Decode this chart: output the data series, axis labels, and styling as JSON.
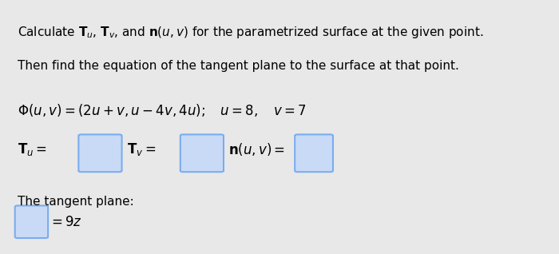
{
  "bg_color": "#e8e8e8",
  "title_line1": "Calculate $\\mathbf{T}_u$, $\\mathbf{T}_v$, and $\\mathbf{n}(u, v)$ for the parametrized surface at the given point.",
  "title_line2": "Then find the equation of the tangent plane to the surface at that point.",
  "phi_eq": "$\\Phi(u, v) = (2u + v, u - 4v, 4u);$",
  "uv_eq": "$u = 8, \\quad v = 7$",
  "tu_label": "$\\mathbf{T}_u = $",
  "tv_label": "$\\mathbf{T}_v = $",
  "nuv_label": "$\\mathbf{n}(u, v) = $",
  "tangent_label": "The tangent plane:",
  "eq9z": "$= 9z$",
  "box_color": "#c8daf5",
  "box_edge_color": "#7aacf0",
  "font_size_main": 11,
  "font_size_eq": 12
}
